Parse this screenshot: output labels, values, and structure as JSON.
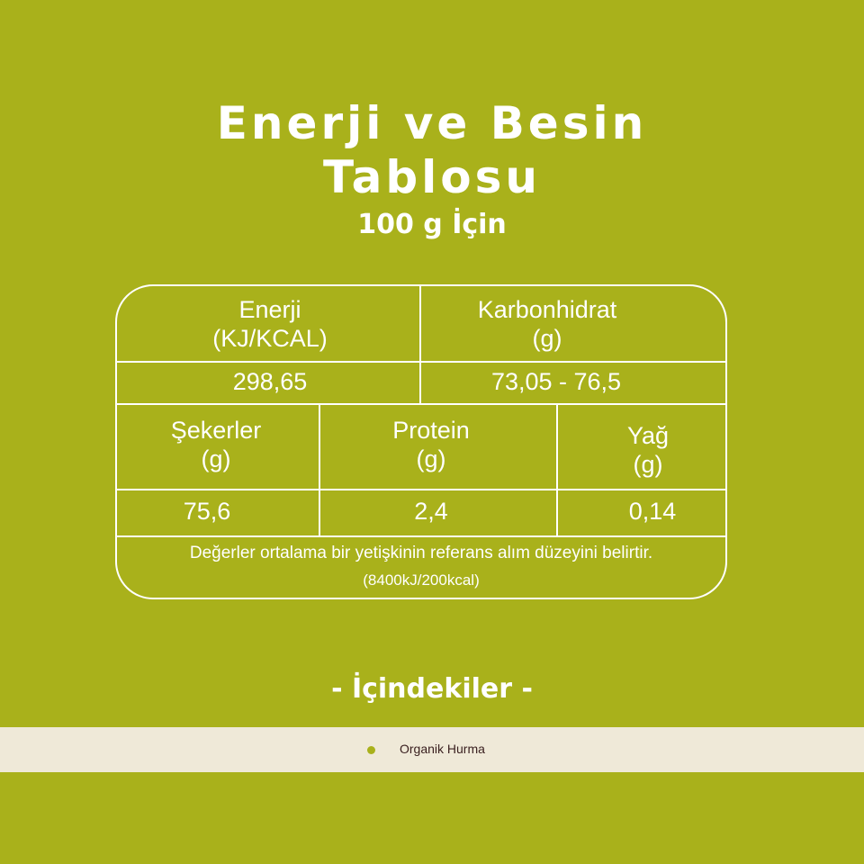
{
  "title": {
    "line1": "Enerji ve Besin",
    "line2": "Tablosu",
    "subtitle": "100 g İçin"
  },
  "table": {
    "energy": {
      "label": "Enerji",
      "unit": "(KJ/KCAL)",
      "value": "298,65"
    },
    "carbs": {
      "label": "Karbonhidrat",
      "unit": "(g)",
      "value": "73,05 - 76,5"
    },
    "sugars": {
      "label": "Şekerler",
      "unit": "(g)",
      "value": "75,6"
    },
    "protein": {
      "label": "Protein",
      "unit": "(g)",
      "value": "2,4"
    },
    "fat": {
      "label": "Yağ",
      "unit": "(g)",
      "value": "0,14"
    },
    "note": "Değerler ortalama bir yetişkinin referans alım düzeyini belirtir.",
    "note_ref": "(8400kJ/200kcal)"
  },
  "ingredients": {
    "heading": "-  İçindekiler  -",
    "items": [
      "Organik Hurma"
    ]
  },
  "colors": {
    "background": "#a9b11b",
    "band": "#efe9d8",
    "text": "#ffffff"
  }
}
